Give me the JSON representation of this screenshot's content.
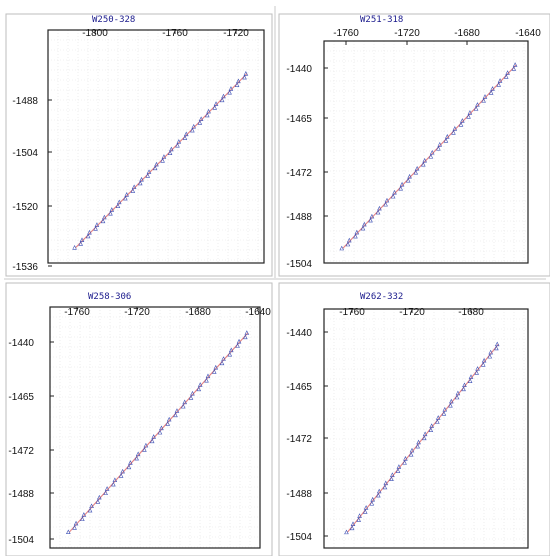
{
  "chart_data": [
    {
      "type": "scatter",
      "title": "W250-328",
      "x_ticks": [
        "-1800",
        "-1760",
        "-1720"
      ],
      "y_ticks": [
        "-1488",
        "-1504",
        "-1520",
        "-1536"
      ],
      "xlim": [
        -1830,
        -1690
      ],
      "ylim": [
        -1539,
        -1464
      ],
      "grid": true,
      "series": [
        {
          "color": "#e58080",
          "marker": "line",
          "values": [
            [
              -1812,
              -1534
            ],
            [
              -1701,
              -1478
            ]
          ]
        },
        {
          "color": "#3b4fb5",
          "marker": "triangle",
          "values": [
            [
              -1812,
              -1534
            ],
            [
              -1701,
              -1478
            ]
          ]
        }
      ]
    },
    {
      "type": "scatter",
      "title": "W251-318",
      "x_ticks": [
        "-1760",
        "-1720",
        "-1680",
        "-1640"
      ],
      "y_ticks": [
        "-1440",
        "-1465",
        "-1472",
        "-1488",
        "-1504"
      ],
      "xlim": [
        -1778,
        -1638
      ],
      "ylim": [
        -1507,
        -1432
      ],
      "grid": true,
      "series": [
        {
          "color": "#e58080",
          "marker": "line",
          "values": [
            [
              -1765,
              -1502
            ],
            [
              -1646,
              -1440
            ]
          ]
        },
        {
          "color": "#3b4fb5",
          "marker": "triangle",
          "values": [
            [
              -1765,
              -1502
            ],
            [
              -1646,
              -1440
            ]
          ]
        }
      ]
    },
    {
      "type": "scatter",
      "title": "W258-306",
      "x_ticks": [
        "-1760",
        "-1720",
        "-1680",
        "-1640"
      ],
      "y_ticks": [
        "-1440",
        "-1465",
        "-1472",
        "-1488",
        "-1504"
      ],
      "xlim": [
        -1778,
        -1638
      ],
      "ylim": [
        -1507,
        -1432
      ],
      "grid": true,
      "series": [
        {
          "color": "#e58080",
          "marker": "line",
          "values": [
            [
              -1765,
              -1502
            ],
            [
              -1646,
              -1440
            ]
          ]
        },
        {
          "color": "#3b4fb5",
          "marker": "triangle",
          "values": [
            [
              -1765,
              -1502
            ],
            [
              -1646,
              -1440
            ]
          ]
        }
      ]
    },
    {
      "type": "scatter",
      "title": "W262-332",
      "x_ticks": [
        "-1760",
        "-1720",
        "-1680"
      ],
      "y_ticks": [
        "-1440",
        "-1465",
        "-1472",
        "-1488",
        "-1504"
      ],
      "xlim": [
        -1778,
        -1640
      ],
      "ylim": [
        -1507,
        -1432
      ],
      "grid": true,
      "series": [
        {
          "color": "#e58080",
          "marker": "line",
          "values": [
            [
              -1762,
              -1502
            ],
            [
              -1660,
              -1443
            ]
          ]
        },
        {
          "color": "#3b4fb5",
          "marker": "triangle",
          "values": [
            [
              -1762,
              -1502
            ],
            [
              -1660,
              -1443
            ]
          ]
        }
      ]
    }
  ]
}
